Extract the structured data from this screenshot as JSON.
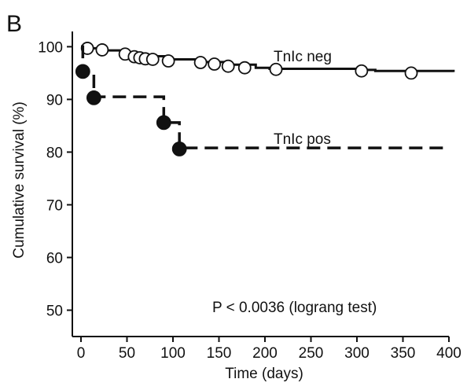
{
  "panel_label": "B",
  "chart_data": {
    "type": "line",
    "subtype": "kaplan-meier step plot",
    "xlabel": "Time (days)",
    "ylabel": "Cumulative survival (%)",
    "xlim": [
      0,
      400
    ],
    "ylim": [
      45,
      102
    ],
    "x_ticks": [
      0,
      50,
      100,
      150,
      200,
      250,
      300,
      350,
      400
    ],
    "y_ticks": [
      50,
      60,
      70,
      80,
      90,
      100
    ],
    "grid": false,
    "annotation": "P < 0.0036 (lograng test)",
    "series": [
      {
        "name": "TnIc neg",
        "line_style": "solid",
        "marker": "open-circle",
        "color": "#111111",
        "step_x": [
          0,
          5,
          20,
          48,
          60,
          72,
          95,
          130,
          160,
          190,
          205,
          300,
          320,
          405
        ],
        "step_y": [
          100,
          99.7,
          99.3,
          98.9,
          98.6,
          98.2,
          97.6,
          97.1,
          96.6,
          96.0,
          95.8,
          95.6,
          95.4,
          95.2
        ],
        "points_x": [
          7,
          23,
          48,
          58,
          64,
          70,
          78,
          95,
          130,
          145,
          160,
          178,
          212,
          305,
          359
        ],
        "points_y": [
          99.7,
          99.4,
          98.6,
          98.1,
          97.9,
          97.7,
          97.6,
          97.3,
          97.0,
          96.7,
          96.3,
          96.0,
          95.7,
          95.4,
          95.0
        ]
      },
      {
        "name": "TnIc pos",
        "line_style": "dashed",
        "marker": "filled-circle",
        "color": "#111111",
        "step_x": [
          0,
          2,
          14,
          90,
          107,
          400
        ],
        "step_y": [
          100,
          95.3,
          90.5,
          85.6,
          80.8,
          80.8
        ],
        "points_x": [
          2,
          14,
          90,
          107
        ],
        "points_y": [
          95.3,
          90.3,
          85.6,
          80.6
        ]
      }
    ]
  }
}
